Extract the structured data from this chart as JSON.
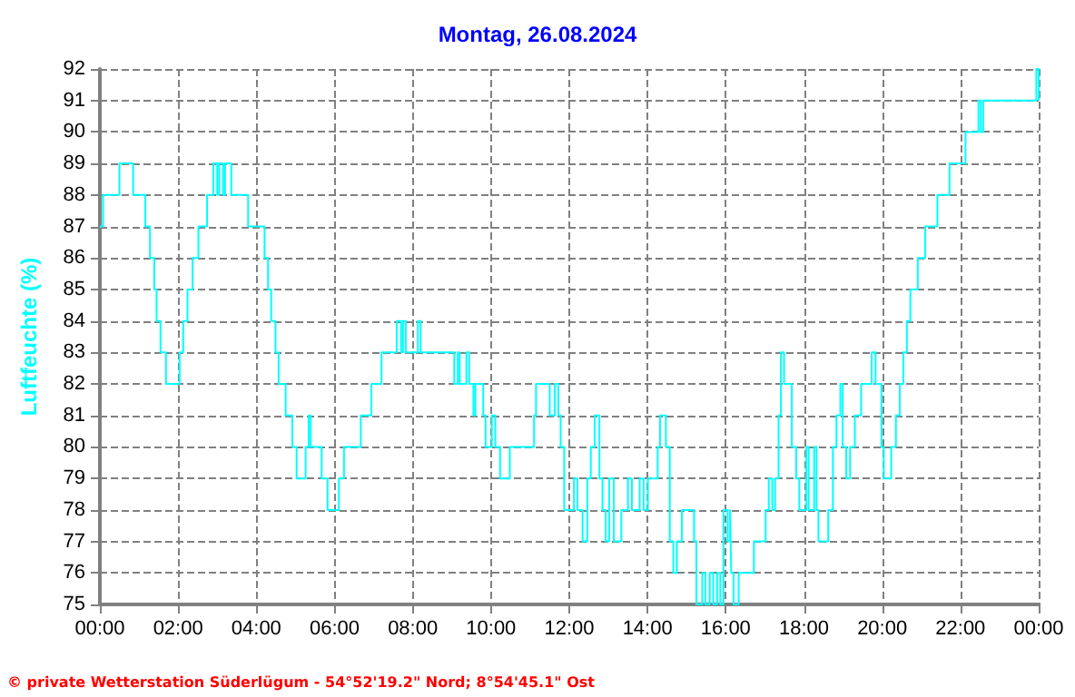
{
  "chart_data": {
    "type": "step",
    "title": "Montag, 26.08.2024",
    "ylabel": "Luftfeuchte (%)",
    "annotations": [
      "© private Wetterstation Süderlügum - 54°52'19.2\" Nord; 8°54'45.1\" Ost"
    ],
    "xlim": [
      0,
      24
    ],
    "ylim": [
      75,
      92
    ],
    "xticks": [
      {
        "value": 0,
        "label": "00:00"
      },
      {
        "value": 2,
        "label": "02:00"
      },
      {
        "value": 4,
        "label": "04:00"
      },
      {
        "value": 6,
        "label": "06:00"
      },
      {
        "value": 8,
        "label": "08:00"
      },
      {
        "value": 10,
        "label": "10:00"
      },
      {
        "value": 12,
        "label": "12:00"
      },
      {
        "value": 14,
        "label": "14:00"
      },
      {
        "value": 16,
        "label": "16:00"
      },
      {
        "value": 18,
        "label": "18:00"
      },
      {
        "value": 20,
        "label": "20:00"
      },
      {
        "value": 22,
        "label": "22:00"
      },
      {
        "value": 24,
        "label": "00:00"
      }
    ],
    "yticks": [
      75,
      76,
      77,
      78,
      79,
      80,
      81,
      82,
      83,
      84,
      85,
      86,
      87,
      88,
      89,
      90,
      91,
      92
    ],
    "grid": true,
    "marker": "none",
    "line_style": "solid",
    "series": [
      {
        "color": "#00ffff",
        "x": [
          0,
          0.08,
          0.5,
          0.85,
          1.16,
          1.28,
          1.39,
          1.45,
          1.55,
          1.69,
          2.04,
          2.13,
          2.24,
          2.37,
          2.52,
          2.74,
          2.9,
          3.0,
          3.05,
          3.15,
          3.2,
          3.36,
          3.79,
          4.21,
          4.3,
          4.38,
          4.49,
          4.57,
          4.75,
          4.92,
          5.03,
          5.26,
          5.34,
          5.39,
          5.67,
          5.82,
          6.11,
          6.24,
          6.67,
          6.94,
          7.2,
          7.59,
          7.7,
          7.75,
          7.82,
          8.13,
          8.2,
          9.06,
          9.15,
          9.2,
          9.37,
          9.44,
          9.55,
          9.6,
          9.8,
          9.86,
          10.02,
          10.11,
          10.23,
          10.48,
          11.1,
          11.15,
          11.5,
          11.63,
          11.72,
          11.78,
          11.87,
          12.12,
          12.21,
          12.34,
          12.46,
          12.55,
          12.65,
          12.77,
          12.85,
          12.93,
          13.02,
          13.14,
          13.33,
          13.5,
          13.6,
          13.8,
          13.9,
          14.01,
          14.26,
          14.32,
          14.47,
          14.57,
          14.66,
          14.75,
          14.88,
          15.19,
          15.25,
          15.4,
          15.48,
          15.59,
          15.68,
          15.78,
          15.86,
          15.94,
          16.05,
          16.11,
          16.14,
          16.2,
          16.33,
          16.72,
          17.02,
          17.1,
          17.19,
          17.26,
          17.35,
          17.41,
          17.49,
          17.69,
          17.8,
          17.88,
          18.06,
          18.12,
          18.26,
          18.32,
          18.37,
          18.62,
          18.74,
          18.83,
          18.93,
          18.99,
          19.08,
          19.18,
          19.3,
          19.46,
          19.73,
          19.83,
          19.98,
          20.04,
          20.23,
          20.35,
          20.45,
          20.54,
          20.63,
          20.72,
          20.91,
          21.1,
          21.41,
          21.72,
          22.13,
          22.46,
          22.52,
          22.58,
          23.94,
          24
        ],
        "values": [
          87,
          88,
          89,
          88,
          87,
          86,
          85,
          84,
          83,
          82,
          83,
          84,
          85,
          86,
          87,
          88,
          89,
          88,
          89,
          88,
          89,
          88,
          87,
          86,
          85,
          84,
          83,
          82,
          81,
          80,
          79,
          80,
          81,
          80,
          79,
          78,
          79,
          80,
          81,
          82,
          83,
          84,
          83,
          84,
          83,
          84,
          83,
          82,
          83,
          82,
          83,
          82,
          81,
          82,
          81,
          80,
          81,
          80,
          79,
          80,
          81,
          82,
          81,
          82,
          81,
          80,
          78,
          79,
          78,
          77,
          79,
          80,
          81,
          79,
          78,
          77,
          79,
          77,
          78,
          79,
          78,
          79,
          78,
          79,
          80,
          81,
          80,
          77,
          76,
          77,
          78,
          77,
          75,
          76,
          75,
          76,
          75,
          76,
          75,
          78,
          77,
          78,
          76,
          75,
          76,
          77,
          78,
          79,
          78,
          79,
          81,
          83,
          82,
          80,
          79,
          78,
          80,
          78,
          80,
          78,
          77,
          78,
          80,
          81,
          82,
          80,
          79,
          80,
          81,
          82,
          83,
          82,
          80,
          79,
          80,
          81,
          82,
          83,
          84,
          85,
          86,
          87,
          88,
          89,
          90,
          91,
          90,
          91,
          92,
          91
        ]
      }
    ]
  }
}
